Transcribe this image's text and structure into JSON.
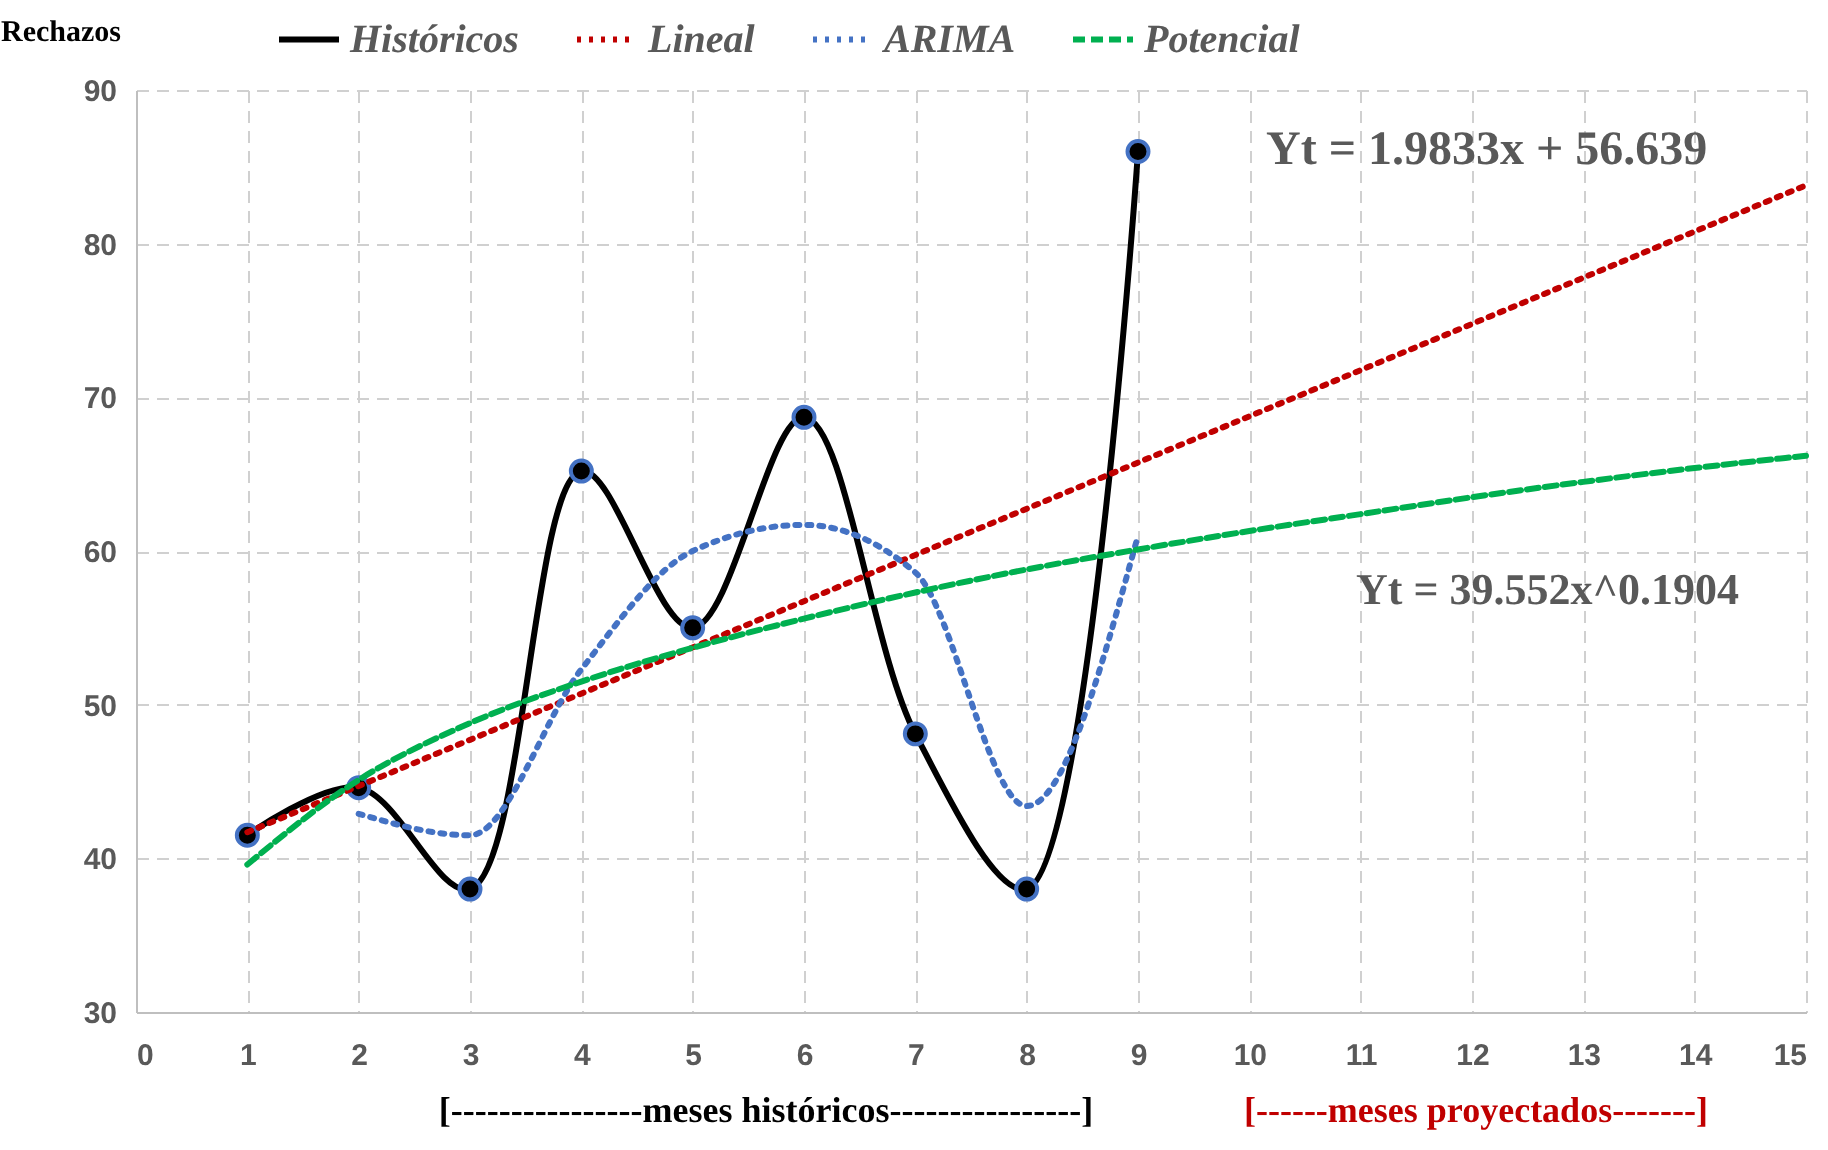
{
  "chart_data": {
    "type": "line",
    "ylabel": "Rechazos",
    "xlabel": "[----------------meses históricos----------------]",
    "xlim": [
      0,
      15
    ],
    "xticks": [
      0,
      1,
      2,
      3,
      4,
      5,
      6,
      7,
      8,
      9,
      10,
      11,
      12,
      13,
      14,
      15
    ],
    "ylim": [
      30,
      90
    ],
    "yticks": [
      30,
      40,
      50,
      60,
      70,
      80,
      90
    ],
    "grid": true,
    "legend": "top",
    "series": [
      {
        "name": "Históricos",
        "color": "#000000",
        "line_style": "solid",
        "marker": "circle",
        "x": [
          1,
          2,
          3,
          4,
          5,
          6,
          7,
          8,
          9
        ],
        "values": [
          41.5,
          44.6,
          38,
          65.2,
          55,
          68.7,
          48.1,
          38,
          86
        ]
      },
      {
        "name": "Lineal",
        "color": "#c00000",
        "line_style": "dotted",
        "marker": "none",
        "x": [
          1,
          15
        ],
        "values": [
          41.7,
          83.8
        ]
      },
      {
        "name": "ARIMA",
        "color": "#4472c4",
        "line_style": "dotted",
        "marker": "none",
        "x": [
          2,
          3,
          4,
          5,
          6,
          7,
          8,
          9
        ],
        "values": [
          42.9,
          41.5,
          52.3,
          60,
          61.7,
          58.6,
          43.4,
          61
        ]
      },
      {
        "name": "Potencial",
        "color": "#00b050",
        "line_style": "dashed",
        "marker": "none",
        "x": [
          1,
          2,
          3,
          4,
          5,
          6,
          7,
          8,
          9,
          10,
          11,
          12,
          13,
          14,
          15
        ],
        "values": [
          39.6,
          45.1,
          48.8,
          51.5,
          53.7,
          55.6,
          57.3,
          58.8,
          60.1,
          61.3,
          62.4,
          63.5,
          64.5,
          65.4,
          66.2
        ]
      }
    ],
    "annotations": [
      "[------meses proyectados-------]",
      "Yt = 1.9833x + 56.639",
      "Yt = 39.552x^0.1904"
    ]
  }
}
